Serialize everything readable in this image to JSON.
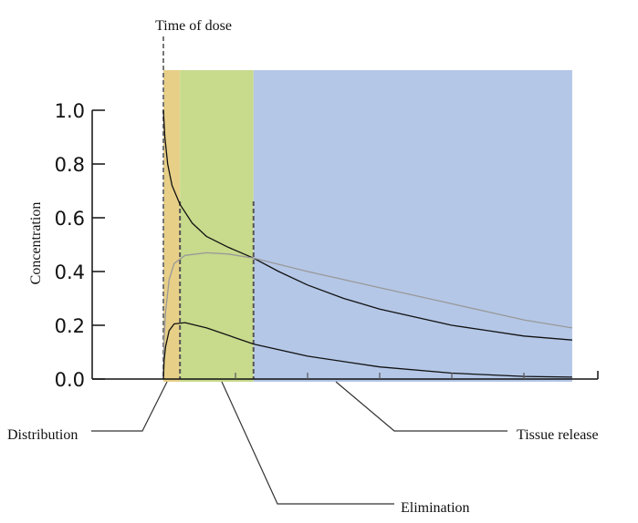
{
  "chart_data": {
    "type": "line",
    "title": "",
    "xlabel": "",
    "ylabel": "Concentration",
    "ylim": [
      0,
      1.0
    ],
    "xlim": [
      0,
      6
    ],
    "y_ticks": [
      "0.0",
      "0.2",
      "0.4",
      "0.6",
      "0.8",
      "1.0"
    ],
    "y_tick_values": [
      0,
      0.2,
      0.4,
      0.6,
      0.8,
      1.0
    ],
    "x_tick_values": [
      1,
      2,
      3,
      4,
      5
    ],
    "grid": false,
    "dose_marker": {
      "label": "Time of dose",
      "t": 0
    },
    "phases": [
      {
        "label": "Distribution",
        "start": 0,
        "end": 0.23,
        "color": "#e7cf88"
      },
      {
        "label": "Elimination",
        "start": 0.23,
        "end": 1.25,
        "color": "#c8da8c"
      },
      {
        "label": "Tissue release",
        "start": 1.25,
        "end": 5.67,
        "color": "#b4c7e7"
      }
    ],
    "series": [
      {
        "color": "#111111",
        "x": [
          0,
          0.02,
          0.06,
          0.12,
          0.23,
          0.4,
          0.6,
          0.9,
          1.25,
          1.6,
          2,
          2.5,
          3,
          3.5,
          4,
          4.5,
          5,
          5.67
        ],
        "y": [
          1.0,
          0.9,
          0.8,
          0.72,
          0.65,
          0.58,
          0.53,
          0.49,
          0.45,
          0.4,
          0.35,
          0.3,
          0.26,
          0.23,
          0.2,
          0.18,
          0.16,
          0.145
        ]
      },
      {
        "color": "#999999",
        "x": [
          0,
          0.01,
          0.03,
          0.08,
          0.15,
          0.3,
          0.6,
          0.9,
          1.25,
          2,
          3,
          4,
          5,
          5.67
        ],
        "y": [
          0,
          0.15,
          0.25,
          0.37,
          0.43,
          0.46,
          0.47,
          0.465,
          0.45,
          0.4,
          0.34,
          0.28,
          0.22,
          0.19
        ]
      },
      {
        "color": "#111111",
        "x": [
          0,
          0.01,
          0.03,
          0.08,
          0.15,
          0.3,
          0.6,
          1.25,
          2,
          3,
          4,
          5,
          5.67
        ],
        "y": [
          0,
          0.07,
          0.12,
          0.18,
          0.205,
          0.21,
          0.19,
          0.13,
          0.085,
          0.045,
          0.022,
          0.01,
          0.007
        ]
      }
    ]
  }
}
